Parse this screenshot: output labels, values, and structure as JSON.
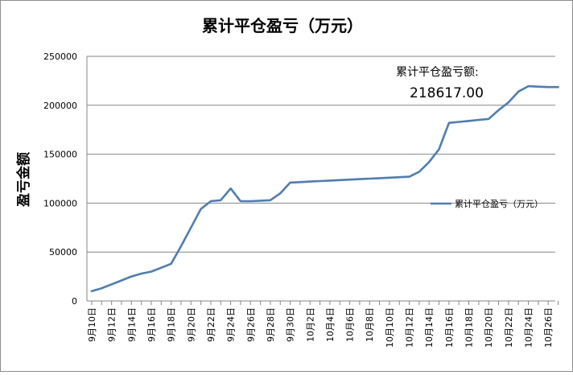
{
  "chart_data": {
    "type": "line",
    "title": "累计平仓盈亏（万元）",
    "ylabel": "盈亏金额",
    "xlabel": "",
    "ylim": [
      0,
      250000
    ],
    "yticks": [
      0,
      50000,
      100000,
      150000,
      200000,
      250000
    ],
    "grid": "horizontal",
    "legend_position": "right",
    "annotation": {
      "label": "累计平仓盈亏额:",
      "value": "218617.00"
    },
    "categories": [
      "9月10日",
      "9月11日",
      "9月12日",
      "9月13日",
      "9月14日",
      "9月15日",
      "9月16日",
      "9月17日",
      "9月18日",
      "9月19日",
      "9月20日",
      "9月21日",
      "9月22日",
      "9月23日",
      "9月24日",
      "9月25日",
      "9月26日",
      "9月27日",
      "9月28日",
      "9月29日",
      "9月30日",
      "10月1日",
      "10月2日",
      "10月3日",
      "10月4日",
      "10月5日",
      "10月6日",
      "10月7日",
      "10月8日",
      "10月9日",
      "10月10日",
      "10月11日",
      "10月12日",
      "10月13日",
      "10月14日",
      "10月15日",
      "10月16日",
      "10月17日",
      "10月18日",
      "10月19日",
      "10月20日",
      "10月21日",
      "10月22日",
      "10月23日",
      "10月24日",
      "10月25日",
      "10月26日",
      "10月27日"
    ],
    "tick_labels": [
      "9月10日",
      "9月12日",
      "9月14日",
      "9月16日",
      "9月18日",
      "9月20日",
      "9月22日",
      "9月24日",
      "9月26日",
      "9月28日",
      "9月30日",
      "10月2日",
      "10月4日",
      "10月6日",
      "10月8日",
      "10月10日",
      "10月12日",
      "10月14日",
      "10月16日",
      "10月18日",
      "10月20日",
      "10月22日",
      "10月24日",
      "10月26日"
    ],
    "series": [
      {
        "name": "累计平仓盈亏（万元）",
        "color": "#4a7ebb",
        "values": [
          10000,
          13000,
          17000,
          21000,
          25000,
          28000,
          30000,
          34000,
          38000,
          56000,
          75000,
          94000,
          102000,
          103000,
          115000,
          102000,
          102000,
          102500,
          103000,
          110000,
          121000,
          121500,
          122000,
          122500,
          123000,
          123500,
          124000,
          124500,
          125000,
          125500,
          126000,
          126500,
          127000,
          132000,
          142000,
          155000,
          182000,
          183000,
          184000,
          185000,
          186000,
          195000,
          203000,
          214000,
          219500,
          219000,
          218617,
          218617
        ]
      }
    ]
  }
}
